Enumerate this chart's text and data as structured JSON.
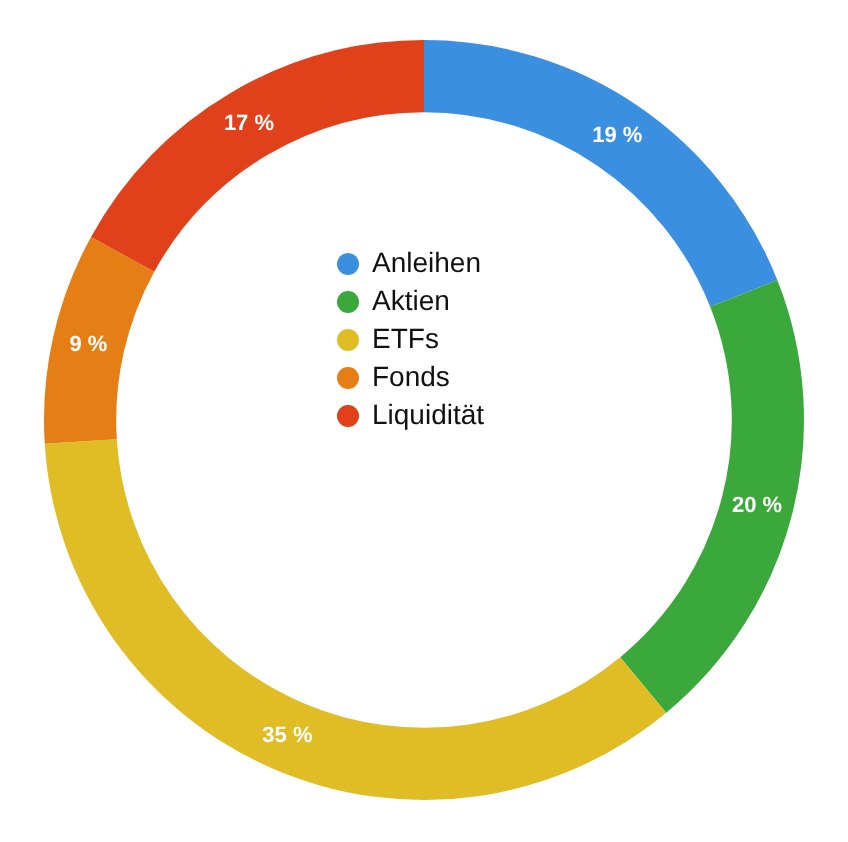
{
  "chart_data": {
    "type": "donut",
    "categories": [
      "Anleihen",
      "Aktien",
      "ETFs",
      "Fonds",
      "Liquidität"
    ],
    "values": [
      19,
      20,
      35,
      9,
      17
    ],
    "colors": [
      "#3a8fe0",
      "#3aa83a",
      "#e0bc25",
      "#e57f15",
      "#e0401a"
    ],
    "value_labels": [
      "19 %",
      "20 %",
      "35 %",
      "9 %",
      "17 %"
    ],
    "legend": "center"
  }
}
